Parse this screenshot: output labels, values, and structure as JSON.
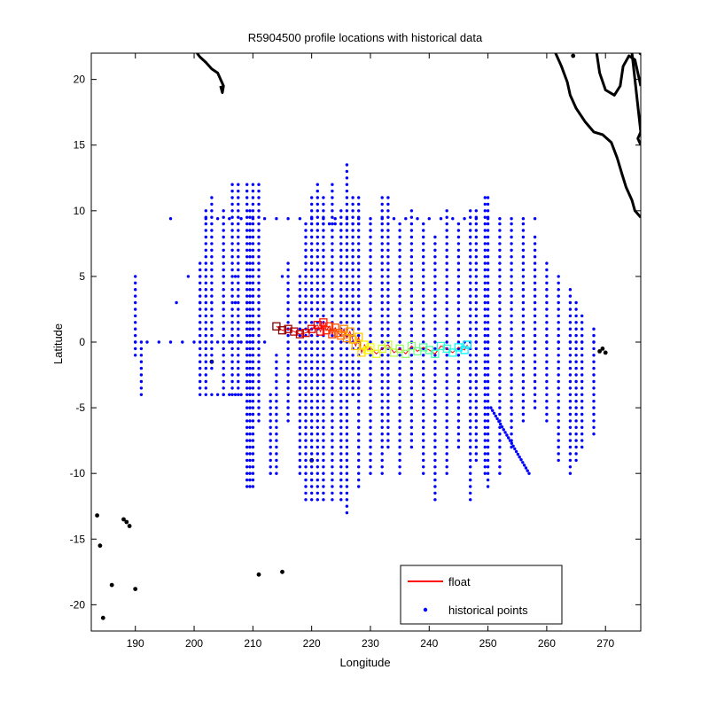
{
  "chart_data": {
    "type": "scatter",
    "title": "R5904500 profile locations with historical data",
    "xlabel": "Longitude",
    "ylabel": "Latitude",
    "xlim": [
      182.5,
      276
    ],
    "ylim": [
      -22,
      22
    ],
    "xticks": [
      190,
      200,
      210,
      220,
      230,
      240,
      250,
      260,
      270
    ],
    "yticks": [
      -20,
      -15,
      -10,
      -5,
      0,
      5,
      10,
      15,
      20
    ],
    "grid": false,
    "legend_position": "bottom-right",
    "legend": [
      {
        "label": "float",
        "marker": "line",
        "color": "#ff0000"
      },
      {
        "label": "historical points",
        "marker": "dot",
        "color": "#0000ff"
      }
    ],
    "series": [
      {
        "name": "historical points",
        "color": "#0000ff",
        "rows": [
          {
            "y": 9.4,
            "x": [
              196,
              202,
              204,
              206,
              208,
              210,
              212,
              214,
              216,
              218,
              220,
              222,
              224,
              226,
              228,
              230,
              232,
              234,
              236,
              238,
              240,
              242,
              244,
              246,
              248,
              250,
              252,
              254,
              256,
              258
            ]
          },
          {
            "y": 9.0,
            "x": [
              221,
              222,
              223,
              224,
              225,
              226,
              227,
              228
            ]
          },
          {
            "y": 0.0,
            "x": [
              190,
              192,
              194,
              196,
              198,
              200,
              202,
              204,
              206,
              208,
              210,
              212,
              246,
              248,
              250,
              252,
              254,
              256,
              258,
              260,
              262,
              264,
              266,
              268
            ]
          },
          {
            "y": -4.0,
            "x": [
              203,
              204,
              205,
              206,
              207,
              208
            ]
          },
          {
            "y": 5.0,
            "x": [
              199,
              201,
              205,
              207,
              209,
              215
            ]
          },
          {
            "y": 3.0,
            "x": [
              197,
              201,
              203,
              205,
              207,
              209
            ]
          }
        ],
        "columns": [
          {
            "x": 190.0,
            "y": [
              -1,
              5
            ]
          },
          {
            "x": 191.0,
            "y": [
              -4,
              0
            ]
          },
          {
            "x": 201.0,
            "y": [
              -4,
              6
            ]
          },
          {
            "x": 202.0,
            "y": [
              -4,
              10
            ]
          },
          {
            "x": 203.0,
            "y": [
              -2,
              11
            ]
          },
          {
            "x": 205.0,
            "y": [
              -4,
              10
            ]
          },
          {
            "x": 206.5,
            "y": [
              -4,
              12
            ]
          },
          {
            "x": 207.5,
            "y": [
              -4,
              12
            ]
          },
          {
            "x": 209.0,
            "y": [
              -11,
              12
            ]
          },
          {
            "x": 209.5,
            "y": [
              -11,
              10
            ]
          },
          {
            "x": 210.0,
            "y": [
              -11,
              12
            ]
          },
          {
            "x": 211.0,
            "y": [
              -6,
              12
            ]
          },
          {
            "x": 213.0,
            "y": [
              -10,
              -4
            ]
          },
          {
            "x": 214.0,
            "y": [
              -10,
              -1
            ]
          },
          {
            "x": 216.0,
            "y": [
              -6,
              6
            ]
          },
          {
            "x": 218.0,
            "y": [
              -10,
              5
            ]
          },
          {
            "x": 219.0,
            "y": [
              -12,
              9
            ]
          },
          {
            "x": 220.0,
            "y": [
              -12,
              11
            ]
          },
          {
            "x": 221.0,
            "y": [
              -12,
              12
            ]
          },
          {
            "x": 222.0,
            "y": [
              -12,
              11
            ]
          },
          {
            "x": 223.5,
            "y": [
              -12,
              12
            ]
          },
          {
            "x": 225.0,
            "y": [
              -12,
              10
            ]
          },
          {
            "x": 226.0,
            "y": [
              -13,
              13.5
            ]
          },
          {
            "x": 227.0,
            "y": [
              -4,
              11
            ]
          },
          {
            "x": 228.0,
            "y": [
              -11,
              11
            ]
          },
          {
            "x": 230.0,
            "y": [
              -10,
              9
            ]
          },
          {
            "x": 232.0,
            "y": [
              -10,
              11
            ]
          },
          {
            "x": 233.0,
            "y": [
              -8,
              11
            ]
          },
          {
            "x": 235.0,
            "y": [
              -10,
              9
            ]
          },
          {
            "x": 237.0,
            "y": [
              -8,
              10
            ]
          },
          {
            "x": 239.0,
            "y": [
              -10,
              9
            ]
          },
          {
            "x": 241.0,
            "y": [
              -12,
              8
            ]
          },
          {
            "x": 243.0,
            "y": [
              -10,
              10
            ]
          },
          {
            "x": 245.0,
            "y": [
              -8,
              9
            ]
          },
          {
            "x": 247.0,
            "y": [
              -12,
              10
            ]
          },
          {
            "x": 248.0,
            "y": [
              -9,
              10
            ]
          },
          {
            "x": 249.5,
            "y": [
              -10,
              11
            ]
          },
          {
            "x": 250.0,
            "y": [
              -11,
              11
            ]
          },
          {
            "x": 252.0,
            "y": [
              -10,
              9
            ]
          },
          {
            "x": 254.0,
            "y": [
              -8,
              9
            ]
          },
          {
            "x": 256.0,
            "y": [
              -6,
              9
            ]
          },
          {
            "x": 258.0,
            "y": [
              -5,
              8
            ]
          },
          {
            "x": 260.0,
            "y": [
              -6,
              6
            ]
          },
          {
            "x": 262.0,
            "y": [
              -9,
              5
            ]
          },
          {
            "x": 264.0,
            "y": [
              -10,
              4
            ]
          },
          {
            "x": 265.0,
            "y": [
              -9,
              3
            ]
          },
          {
            "x": 266.0,
            "y": [
              -8,
              2
            ]
          },
          {
            "x": 268.0,
            "y": [
              -7,
              1
            ]
          }
        ],
        "segments": [
          {
            "from": [
              250.5,
              -5.0
            ],
            "to": [
              257.0,
              -10.0
            ]
          }
        ]
      },
      {
        "name": "float",
        "marker": "open-square",
        "colormap": "jet",
        "points": [
          [
            214.0,
            1.2
          ],
          [
            215.0,
            0.9
          ],
          [
            216.0,
            1.0
          ],
          [
            217.0,
            0.8
          ],
          [
            218.0,
            0.6
          ],
          [
            219.0,
            0.7
          ],
          [
            220.0,
            1.0
          ],
          [
            221.0,
            1.3
          ],
          [
            221.5,
            0.8
          ],
          [
            222.0,
            1.5
          ],
          [
            222.5,
            0.9
          ],
          [
            223.0,
            1.2
          ],
          [
            223.5,
            0.6
          ],
          [
            224.0,
            1.1
          ],
          [
            224.5,
            0.7
          ],
          [
            225.0,
            0.5
          ],
          [
            225.5,
            1.0
          ],
          [
            226.0,
            0.3
          ],
          [
            226.5,
            0.8
          ],
          [
            227.0,
            0.2
          ],
          [
            227.5,
            -0.3
          ],
          [
            228.0,
            0.4
          ],
          [
            228.5,
            -0.8
          ],
          [
            229.0,
            -0.2
          ],
          [
            229.5,
            -0.6
          ],
          [
            230.0,
            -0.4
          ],
          [
            231.0,
            -0.9
          ],
          [
            232.0,
            -0.5
          ],
          [
            233.0,
            -0.2
          ],
          [
            234.0,
            -0.8
          ],
          [
            235.0,
            -0.5
          ],
          [
            236.0,
            -0.9
          ],
          [
            237.0,
            -0.3
          ],
          [
            238.0,
            -0.7
          ],
          [
            239.0,
            -0.4
          ],
          [
            240.0,
            -0.6
          ],
          [
            241.0,
            -0.9
          ],
          [
            242.0,
            -0.3
          ],
          [
            243.0,
            -0.5
          ],
          [
            244.0,
            -0.8
          ],
          [
            245.0,
            -0.4
          ],
          [
            246.0,
            -0.6
          ],
          [
            246.5,
            -0.2
          ]
        ]
      },
      {
        "name": "land",
        "color": "#000000",
        "coastline_mexico": [
          [
            261.5,
            22
          ],
          [
            262.5,
            21.0
          ],
          [
            263.5,
            19.8
          ],
          [
            264.0,
            18.8
          ],
          [
            265.0,
            17.8
          ],
          [
            266.5,
            16.8
          ],
          [
            268.0,
            16.0
          ],
          [
            269.5,
            15.8
          ],
          [
            271.0,
            15.2
          ],
          [
            272.0,
            14.0
          ],
          [
            272.8,
            12.8
          ],
          [
            273.5,
            11.8
          ],
          [
            274.5,
            10.8
          ],
          [
            275.0,
            10.0
          ],
          [
            276.0,
            9.5
          ]
        ],
        "coastline_yucatan": [
          [
            268.5,
            22
          ],
          [
            269.0,
            20.5
          ],
          [
            270.0,
            19.2
          ],
          [
            271.5,
            18.8
          ],
          [
            272.5,
            19.5
          ],
          [
            273.0,
            21.0
          ],
          [
            274.0,
            21.8
          ],
          [
            275.0,
            21.5
          ],
          [
            275.5,
            20.5
          ],
          [
            276.0,
            19.5
          ]
        ],
        "coastline_east": [
          [
            274.5,
            22
          ],
          [
            275.0,
            20.0
          ],
          [
            275.5,
            18.0
          ],
          [
            276.0,
            16.0
          ],
          [
            275.5,
            15.5
          ],
          [
            276.0,
            15.0
          ]
        ],
        "hawaii": [
          [
            200.5,
            22.0
          ],
          [
            201.0,
            21.7
          ],
          [
            202.0,
            21.3
          ],
          [
            203.0,
            20.8
          ],
          [
            204.0,
            20.5
          ],
          [
            204.5,
            20.0
          ],
          [
            205.0,
            19.5
          ],
          [
            204.8,
            19.0
          ],
          [
            204.5,
            19.5
          ]
        ],
        "islands": [
          [
            203.0,
            -1.5
          ],
          [
            220.0,
            -9.0
          ],
          [
            183.5,
            -13.2
          ],
          [
            184.0,
            -15.5
          ],
          [
            188.0,
            -13.5
          ],
          [
            188.5,
            -13.7
          ],
          [
            189.0,
            -14.0
          ],
          [
            186.0,
            -18.5
          ],
          [
            190.0,
            -18.8
          ],
          [
            184.5,
            -21.0
          ],
          [
            211.0,
            -17.7
          ],
          [
            215.0,
            -17.5
          ],
          [
            269.0,
            -0.7
          ],
          [
            269.5,
            -0.5
          ],
          [
            270.0,
            -0.8
          ],
          [
            276.0,
            22.0
          ],
          [
            264.5,
            21.8
          ]
        ]
      }
    ]
  }
}
